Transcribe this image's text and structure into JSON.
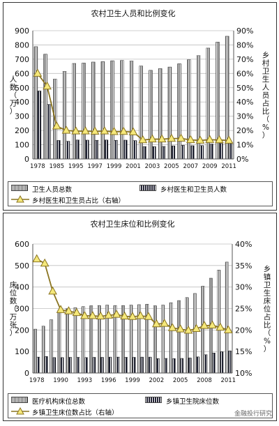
{
  "chart_data": [
    {
      "type": "bar",
      "title": "农村卫生人员和比例变化",
      "ylabel": "人数（万）",
      "ylabel2": "乡村卫生人员占比（%）",
      "ylim": [
        0,
        900
      ],
      "ylim2": [
        0,
        90
      ],
      "yticks": [
        "0",
        "100",
        "200",
        "300",
        "400",
        "500",
        "600",
        "700",
        "800",
        "900"
      ],
      "yticks2": [
        "0%",
        "10%",
        "20%",
        "30%",
        "40%",
        "50%",
        "60%",
        "70%",
        "80%",
        "90%"
      ],
      "xtick_labels": [
        "1978",
        "1985",
        "1995",
        "1997",
        "1999",
        "2001",
        "2003",
        "2005",
        "2007",
        "2009",
        "2011"
      ],
      "categories": [
        "1978",
        "1980",
        "1985",
        "1990",
        "1995",
        "1996",
        "1997",
        "1998",
        "1999",
        "2000",
        "2001",
        "2002",
        "2003",
        "2004",
        "2005",
        "2006",
        "2007",
        "2008",
        "2009",
        "2010",
        "2011"
      ],
      "series": [
        {
          "name": "卫生人员总数",
          "kind": "bar",
          "values": [
            788,
            735,
            560,
            614,
            670,
            673,
            680,
            683,
            689,
            691,
            687,
            652,
            622,
            634,
            645,
            668,
            696,
            725,
            778,
            820,
            861
          ]
        },
        {
          "name": "乡村医生和卫生员人数",
          "kind": "bar",
          "values": [
            477,
            383,
            130,
            124,
            133,
            132,
            131,
            133,
            131,
            132,
            129,
            87,
            87,
            88,
            92,
            96,
            93,
            94,
            105,
            109,
            112
          ]
        },
        {
          "name": "乡村医生和卫生员占比（右轴）",
          "kind": "line",
          "axis": "right",
          "values": [
            60,
            51,
            23,
            20,
            19.5,
            19.5,
            19.3,
            19.5,
            19.1,
            19.2,
            18.9,
            13.3,
            13.9,
            13.9,
            14.3,
            14.4,
            13.4,
            13.0,
            13.5,
            13.3,
            13.0
          ]
        }
      ]
    },
    {
      "type": "bar",
      "title": "农村卫生床位和比例变化",
      "ylabel": "床位数（万张）",
      "ylabel2": "乡镇卫生床位占比（%）",
      "ylim": [
        0,
        600
      ],
      "ylim2": [
        10,
        40
      ],
      "yticks": [
        "0",
        "100",
        "200",
        "300",
        "400",
        "500",
        "600"
      ],
      "yticks2": [
        "10%",
        "15%",
        "20%",
        "25%",
        "30%",
        "35%",
        "40%"
      ],
      "xtick_labels": [
        "1978",
        "1990",
        "1993",
        "1996",
        "1999",
        "2002",
        "2005",
        "2008",
        "2011"
      ],
      "categories": [
        "1978",
        "1980",
        "1985",
        "1990",
        "1991",
        "1992",
        "1993",
        "1994",
        "1995",
        "1996",
        "1997",
        "1998",
        "1999",
        "2000",
        "2001",
        "2002",
        "2003",
        "2004",
        "2005",
        "2006",
        "2007",
        "2008",
        "2009",
        "2010",
        "2011"
      ],
      "series": [
        {
          "name": "医疗机构床位总数",
          "kind": "bar",
          "values": [
            204,
            218,
            248,
            292,
            299,
            304,
            309,
            313,
            314,
            316,
            314,
            314,
            316,
            318,
            320,
            313,
            316,
            327,
            337,
            351,
            370,
            404,
            441,
            479,
            516
          ]
        },
        {
          "name": "乡镇卫生院床位数",
          "kind": "bar",
          "values": [
            74,
            77,
            72,
            72,
            73,
            73,
            72,
            73,
            73,
            74,
            74,
            73,
            73,
            74,
            74,
            67,
            68,
            67,
            68,
            70,
            75,
            85,
            93,
            99,
            103
          ]
        },
        {
          "name": "乡镇卫生床位数占比（右轴）",
          "kind": "line",
          "axis": "right",
          "values": [
            36.5,
            35.5,
            29.0,
            24.7,
            24.4,
            24.0,
            23.3,
            23.3,
            23.2,
            23.4,
            23.6,
            23.2,
            23.1,
            23.3,
            23.1,
            21.4,
            21.5,
            20.5,
            20.2,
            19.9,
            20.3,
            21.0,
            21.1,
            20.6,
            20.0
          ]
        }
      ]
    }
  ],
  "watermark": "金融投行研究"
}
